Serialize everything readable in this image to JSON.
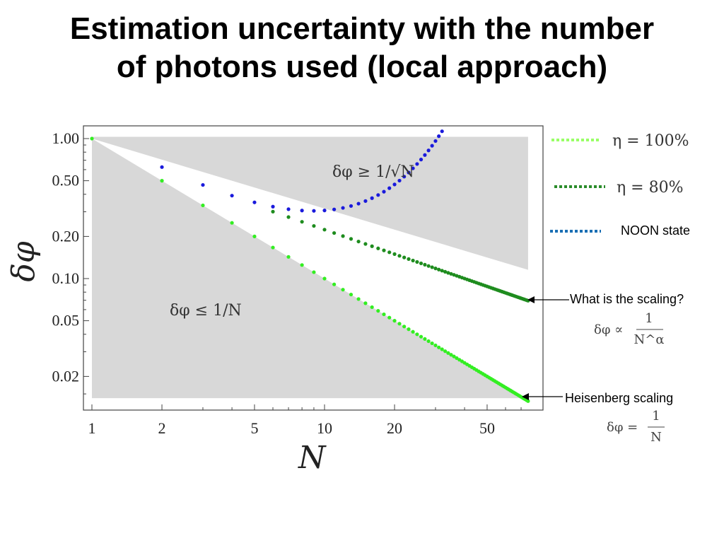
{
  "slide": {
    "title_line1": "Estimation uncertainty with the number",
    "title_line2": "of photons used (local approach)"
  },
  "chart_data": {
    "type": "scatter",
    "xscale": "log",
    "yscale": "log",
    "xlabel": "N",
    "ylabel": "δφ",
    "xlim": [
      1,
      75
    ],
    "ylim": [
      0.0125,
      1.05
    ],
    "xticks": [
      1,
      2,
      5,
      10,
      20,
      50
    ],
    "xtick_labels": [
      "1",
      "2",
      "5",
      "10",
      "20",
      "50"
    ],
    "yticks": [
      1.0,
      0.5,
      0.2,
      0.1,
      0.05,
      0.02
    ],
    "ytick_labels": [
      "1.00",
      "0.50",
      "0.20",
      "0.10",
      "0.05",
      "0.02"
    ],
    "region_labels": {
      "upper": "δφ ≥ 1/√N",
      "lower": "δφ ≤ 1/N"
    },
    "series": [
      {
        "name": "η = 100%",
        "color": "#33ee22",
        "model": "1/N",
        "n_from": 1,
        "n_to": 75
      },
      {
        "name": "η = 80%",
        "color": "#1e8c1e",
        "model": "0.85/N^0.58",
        "n_from": 6,
        "n_to": 75
      },
      {
        "name": "NOON state",
        "color": "#1a1adc",
        "model": "minimum near N≈9, diverges near N≈32",
        "n_from": 1,
        "n_to": 32
      }
    ],
    "legend_placement": "right",
    "annotations": [
      {
        "text": "What is the scaling?",
        "formula": "δφ ∝ 1/N^α"
      },
      {
        "text": "Heisenberg scaling",
        "formula": "δφ = 1/N"
      }
    ]
  },
  "legend": {
    "eta100": "η = 100%",
    "eta80": "η = 80%",
    "noon": "NOON state"
  },
  "annotations": {
    "scaling_question": "What is the scaling?",
    "scaling_formula_lhs": "δφ ∝",
    "scaling_formula_num": "1",
    "scaling_formula_den": "N^α",
    "heisenberg": "Heisenberg scaling",
    "heisenberg_formula_lhs": "δφ =",
    "heisenberg_formula_num": "1",
    "heisenberg_formula_den": "N"
  },
  "colors": {
    "shade": "#d8d8d8",
    "eta100": "#33ee22",
    "eta80": "#1e8c1e",
    "noon": "#1a1adc",
    "noon_legend": "#1a6fb4",
    "eta100_legend": "#99ff66",
    "eta80_legend": "#2a8c2a"
  }
}
